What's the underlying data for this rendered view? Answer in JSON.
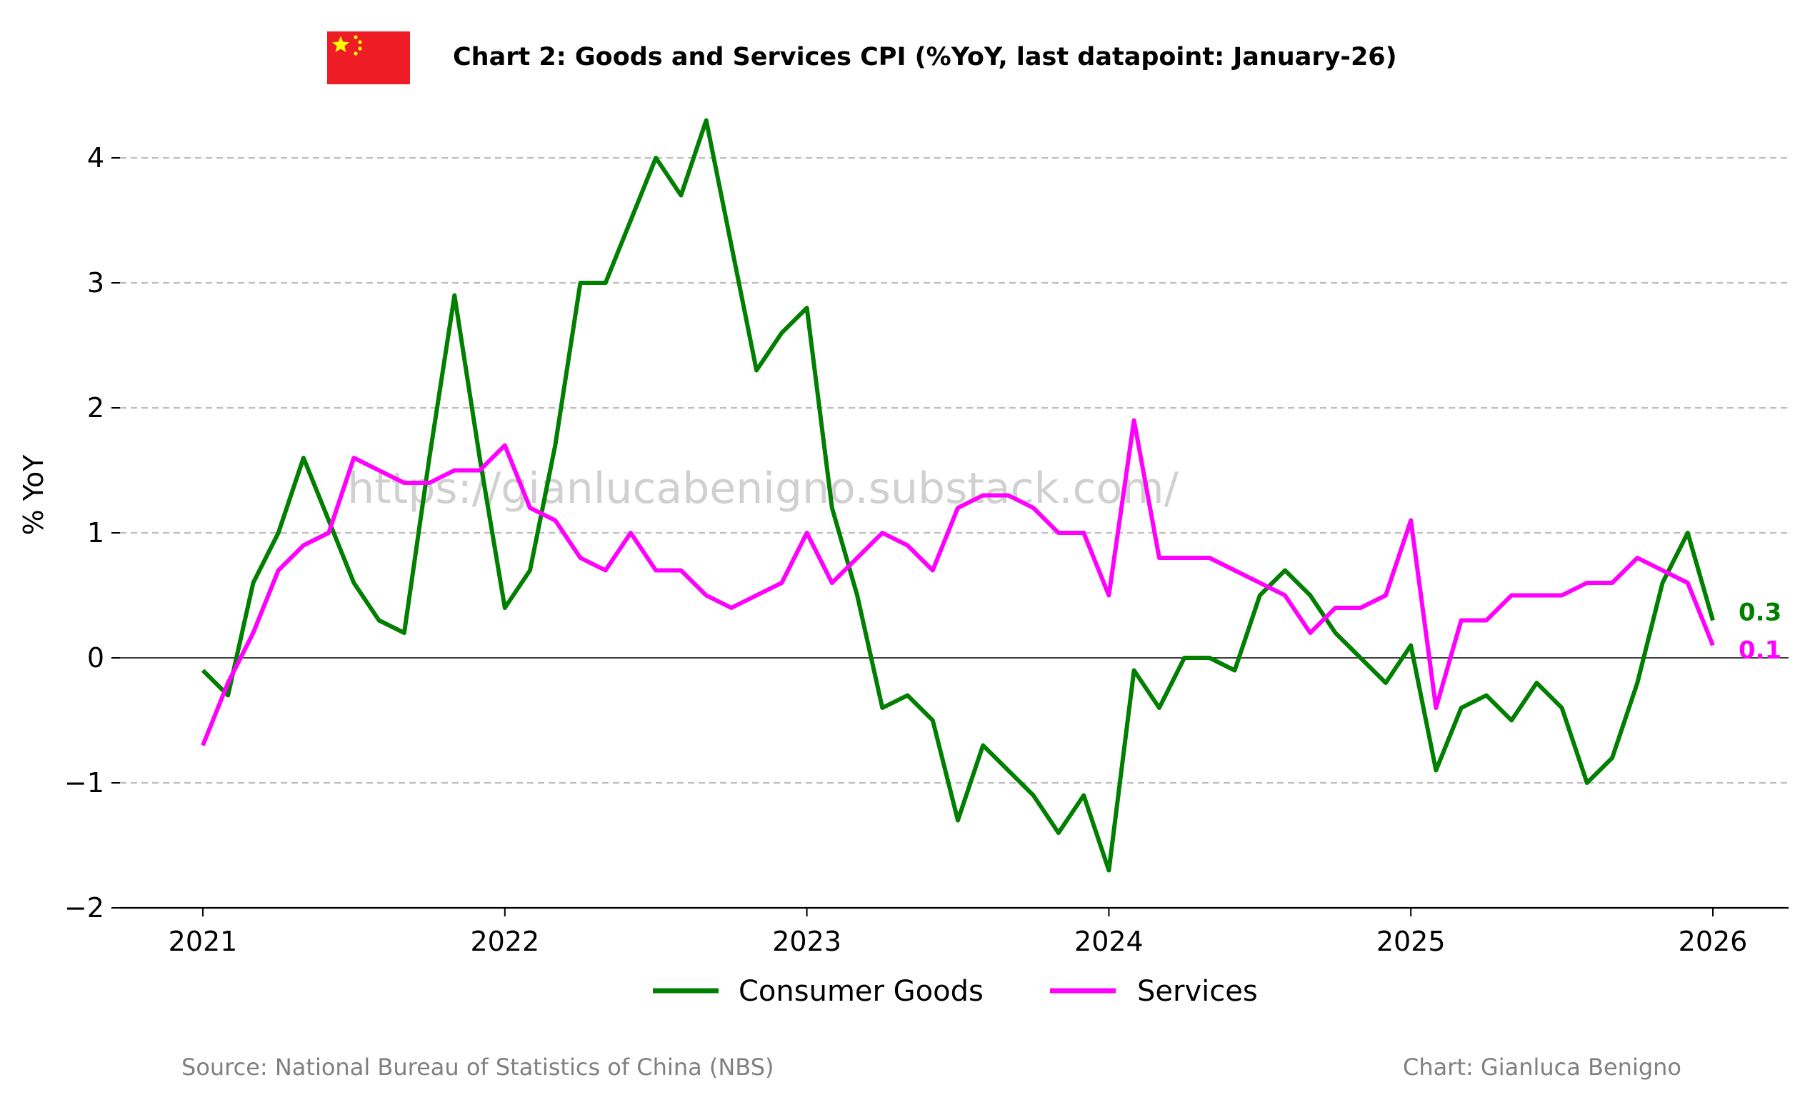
{
  "title": "Chart 2: Goods and Services CPI (%YoY, last datapoint: January-26)",
  "watermark": "https://gianlucabenigno.substack.com/",
  "source": "Source: National Bureau of Statistics of China (NBS)",
  "credit": "Chart: Gianluca Benigno",
  "flag": {
    "red": "#ee1c25",
    "yellow": "#ffff00"
  },
  "chart_data": {
    "type": "line",
    "ylabel": "% YoY",
    "xlabel": "",
    "ylim": [
      -2,
      4.5
    ],
    "yticks": [
      -2,
      -1,
      0,
      1,
      2,
      3,
      4
    ],
    "ytick_labels": [
      "−2",
      "−1",
      "0",
      "1",
      "2",
      "3",
      "4"
    ],
    "xlim": [
      "2020-08",
      "2026-05"
    ],
    "xticks": [
      "2021-01",
      "2022-01",
      "2023-01",
      "2024-01",
      "2025-01",
      "2026-01"
    ],
    "xtick_labels": [
      "2021",
      "2022",
      "2023",
      "2024",
      "2025",
      "2026"
    ],
    "grid": "horizontal dashed",
    "zero_line": true,
    "legend_position": "bottom-center",
    "x": [
      "2021-01",
      "2021-02",
      "2021-03",
      "2021-04",
      "2021-05",
      "2021-06",
      "2021-07",
      "2021-08",
      "2021-09",
      "2021-10",
      "2021-11",
      "2021-12",
      "2022-01",
      "2022-02",
      "2022-03",
      "2022-04",
      "2022-05",
      "2022-06",
      "2022-07",
      "2022-08",
      "2022-09",
      "2022-10",
      "2022-11",
      "2022-12",
      "2023-01",
      "2023-02",
      "2023-03",
      "2023-04",
      "2023-05",
      "2023-06",
      "2023-07",
      "2023-08",
      "2023-09",
      "2023-10",
      "2023-11",
      "2023-12",
      "2024-01",
      "2024-02",
      "2024-03",
      "2024-04",
      "2024-05",
      "2024-06",
      "2024-07",
      "2024-08",
      "2024-09",
      "2024-10",
      "2024-11",
      "2024-12",
      "2025-01",
      "2025-02",
      "2025-03",
      "2025-04",
      "2025-05",
      "2025-06",
      "2025-07",
      "2025-08",
      "2025-09",
      "2025-10",
      "2025-11",
      "2025-12",
      "2026-01"
    ],
    "series": [
      {
        "name": "Consumer Goods",
        "color": "#007f00",
        "end_label": "0.3",
        "values": [
          -0.1,
          -0.3,
          0.6,
          1.0,
          1.6,
          1.1,
          0.6,
          0.3,
          0.2,
          1.6,
          2.9,
          1.6,
          0.4,
          0.7,
          1.7,
          3.0,
          3.0,
          3.5,
          4.0,
          3.7,
          4.3,
          3.3,
          2.3,
          2.6,
          2.8,
          1.2,
          0.5,
          -0.4,
          -0.3,
          -0.5,
          -1.3,
          -0.7,
          -0.9,
          -1.1,
          -1.4,
          -1.1,
          -1.7,
          -0.1,
          -0.4,
          0.0,
          0.0,
          -0.1,
          0.5,
          0.7,
          0.5,
          0.2,
          0.0,
          -0.2,
          0.1,
          -0.9,
          -0.4,
          -0.3,
          -0.5,
          -0.2,
          -0.4,
          -1.0,
          -0.8,
          -0.2,
          0.6,
          1.0,
          0.3
        ]
      },
      {
        "name": "Services",
        "color": "#ff00ff",
        "end_label": "0.1",
        "values": [
          -0.7,
          -0.2,
          0.2,
          0.7,
          0.9,
          1.0,
          1.6,
          1.5,
          1.4,
          1.4,
          1.5,
          1.5,
          1.7,
          1.2,
          1.1,
          0.8,
          0.7,
          1.0,
          0.7,
          0.7,
          0.5,
          0.4,
          0.5,
          0.6,
          1.0,
          0.6,
          0.8,
          1.0,
          0.9,
          0.7,
          1.2,
          1.3,
          1.3,
          1.2,
          1.0,
          1.0,
          0.5,
          1.9,
          0.8,
          0.8,
          0.8,
          0.7,
          0.6,
          0.5,
          0.2,
          0.4,
          0.4,
          0.5,
          1.1,
          -0.4,
          0.3,
          0.3,
          0.5,
          0.5,
          0.5,
          0.6,
          0.6,
          0.8,
          0.7,
          0.6,
          0.1
        ]
      }
    ]
  }
}
